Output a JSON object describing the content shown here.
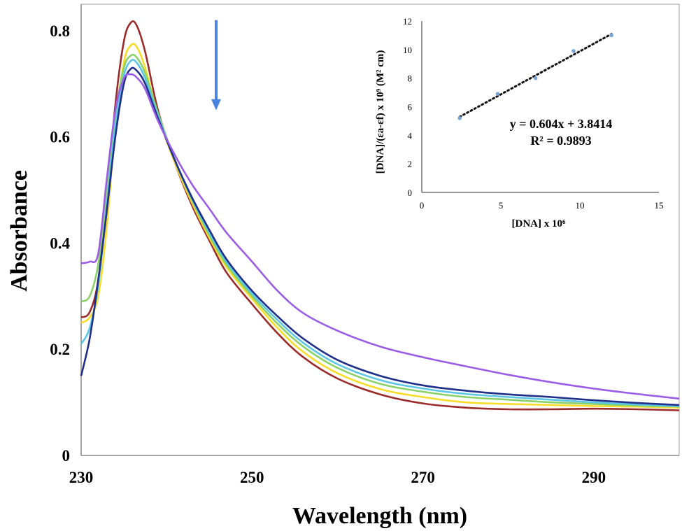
{
  "chart_data": [
    {
      "type": "line",
      "xlabel": "Wavelength (nm)",
      "ylabel": "Absorbance",
      "xlim": [
        230,
        300
      ],
      "ylim": [
        0,
        0.85
      ],
      "x_ticks": [
        "230",
        "250",
        "270",
        "290"
      ],
      "y_ticks": [
        "0",
        "0.2",
        "0.4",
        "0.6",
        "0.8"
      ],
      "annotation": "downward arrow indicating decreasing absorbance",
      "arrow": {
        "x": 245.8,
        "y_from": 0.82,
        "y_to": 0.65,
        "color": "#4a86e0"
      },
      "series": [
        {
          "color": "#9b2a2a",
          "points": [
            [
              230,
              0.26
            ],
            [
              231,
              0.27
            ],
            [
              232,
              0.33
            ],
            [
              233,
              0.48
            ],
            [
              234,
              0.66
            ],
            [
              235,
              0.78
            ],
            [
              235.8,
              0.815
            ],
            [
              236.5,
              0.81
            ],
            [
              237.5,
              0.76
            ],
            [
              239,
              0.65
            ],
            [
              241,
              0.55
            ],
            [
              243,
              0.47
            ],
            [
              245,
              0.405
            ],
            [
              247,
              0.345
            ],
            [
              250,
              0.285
            ],
            [
              253,
              0.23
            ],
            [
              256,
              0.185
            ],
            [
              260,
              0.145
            ],
            [
              265,
              0.115
            ],
            [
              270,
              0.098
            ],
            [
              275,
              0.09
            ],
            [
              280,
              0.087
            ],
            [
              285,
              0.087
            ],
            [
              290,
              0.088
            ],
            [
              295,
              0.087
            ],
            [
              300,
              0.085
            ]
          ]
        },
        {
          "color": "#f7dc2a",
          "points": [
            [
              230,
              0.25
            ],
            [
              231,
              0.26
            ],
            [
              232,
              0.3
            ],
            [
              233,
              0.43
            ],
            [
              234,
              0.62
            ],
            [
              235,
              0.74
            ],
            [
              235.8,
              0.772
            ],
            [
              236.5,
              0.77
            ],
            [
              237.5,
              0.73
            ],
            [
              239,
              0.64
            ],
            [
              241,
              0.55
            ],
            [
              243,
              0.475
            ],
            [
              245,
              0.41
            ],
            [
              247,
              0.355
            ],
            [
              250,
              0.295
            ],
            [
              253,
              0.24
            ],
            [
              256,
              0.195
            ],
            [
              260,
              0.155
            ],
            [
              265,
              0.125
            ],
            [
              270,
              0.11
            ],
            [
              275,
              0.1
            ],
            [
              280,
              0.097
            ],
            [
              285,
              0.095
            ],
            [
              290,
              0.093
            ],
            [
              295,
              0.092
            ],
            [
              300,
              0.09
            ]
          ]
        },
        {
          "color": "#8ad16a",
          "points": [
            [
              230,
              0.29
            ],
            [
              231,
              0.3
            ],
            [
              232,
              0.36
            ],
            [
              233,
              0.49
            ],
            [
              234,
              0.64
            ],
            [
              235,
              0.73
            ],
            [
              235.8,
              0.753
            ],
            [
              236.5,
              0.75
            ],
            [
              237.5,
              0.72
            ],
            [
              239,
              0.645
            ],
            [
              241,
              0.555
            ],
            [
              243,
              0.48
            ],
            [
              245,
              0.415
            ],
            [
              247,
              0.36
            ],
            [
              250,
              0.3
            ],
            [
              253,
              0.248
            ],
            [
              256,
              0.205
            ],
            [
              260,
              0.165
            ],
            [
              265,
              0.135
            ],
            [
              270,
              0.12
            ],
            [
              275,
              0.11
            ],
            [
              280,
              0.105
            ],
            [
              285,
              0.1
            ],
            [
              290,
              0.097
            ],
            [
              295,
              0.094
            ],
            [
              300,
              0.092
            ]
          ]
        },
        {
          "color": "#5cc6e6",
          "points": [
            [
              230,
              0.21
            ],
            [
              231,
              0.24
            ],
            [
              232,
              0.32
            ],
            [
              233,
              0.47
            ],
            [
              234,
              0.62
            ],
            [
              235,
              0.715
            ],
            [
              235.8,
              0.743
            ],
            [
              236.5,
              0.74
            ],
            [
              237.5,
              0.71
            ],
            [
              239,
              0.64
            ],
            [
              241,
              0.555
            ],
            [
              243,
              0.483
            ],
            [
              245,
              0.42
            ],
            [
              247,
              0.365
            ],
            [
              250,
              0.305
            ],
            [
              253,
              0.255
            ],
            [
              256,
              0.212
            ],
            [
              260,
              0.172
            ],
            [
              265,
              0.142
            ],
            [
              270,
              0.126
            ],
            [
              275,
              0.116
            ],
            [
              280,
              0.11
            ],
            [
              285,
              0.105
            ],
            [
              290,
              0.1
            ],
            [
              295,
              0.096
            ],
            [
              300,
              0.093
            ]
          ]
        },
        {
          "color": "#1f2f8a",
          "points": [
            [
              230,
              0.15
            ],
            [
              231,
              0.22
            ],
            [
              232,
              0.33
            ],
            [
              233,
              0.46
            ],
            [
              234,
              0.6
            ],
            [
              235,
              0.7
            ],
            [
              235.8,
              0.728
            ],
            [
              236.5,
              0.725
            ],
            [
              237.5,
              0.7
            ],
            [
              239,
              0.635
            ],
            [
              241,
              0.555
            ],
            [
              243,
              0.485
            ],
            [
              245,
              0.425
            ],
            [
              247,
              0.37
            ],
            [
              250,
              0.31
            ],
            [
              253,
              0.262
            ],
            [
              256,
              0.22
            ],
            [
              260,
              0.18
            ],
            [
              265,
              0.15
            ],
            [
              270,
              0.132
            ],
            [
              275,
              0.122
            ],
            [
              280,
              0.115
            ],
            [
              285,
              0.11
            ],
            [
              290,
              0.104
            ],
            [
              295,
              0.099
            ],
            [
              300,
              0.095
            ]
          ]
        },
        {
          "color": "#9b5de5",
          "points": [
            [
              230,
              0.362
            ],
            [
              231,
              0.365
            ],
            [
              232,
              0.38
            ],
            [
              233,
              0.52
            ],
            [
              234,
              0.65
            ],
            [
              235,
              0.71
            ],
            [
              235.8,
              0.718
            ],
            [
              236.5,
              0.712
            ],
            [
              237.5,
              0.69
            ],
            [
              239,
              0.63
            ],
            [
              241,
              0.565
            ],
            [
              243,
              0.51
            ],
            [
              245,
              0.465
            ],
            [
              247,
              0.42
            ],
            [
              250,
              0.365
            ],
            [
              253,
              0.31
            ],
            [
              256,
              0.268
            ],
            [
              260,
              0.235
            ],
            [
              265,
              0.205
            ],
            [
              270,
              0.185
            ],
            [
              275,
              0.168
            ],
            [
              280,
              0.152
            ],
            [
              285,
              0.138
            ],
            [
              290,
              0.126
            ],
            [
              295,
              0.116
            ],
            [
              300,
              0.107
            ]
          ]
        }
      ]
    },
    {
      "type": "scatter",
      "xlabel": "[DNA] x 10⁶",
      "ylabel": "[DNA]/(εa-εf) x 10⁹ (M² cm)",
      "xlim": [
        0,
        15
      ],
      "ylim": [
        0,
        12
      ],
      "x_ticks": [
        "0",
        "5",
        "10",
        "15"
      ],
      "y_ticks": [
        "0",
        "2",
        "4",
        "6",
        "8",
        "10",
        "12"
      ],
      "points": [
        [
          2.4,
          5.2
        ],
        [
          4.8,
          6.9
        ],
        [
          7.2,
          8.0
        ],
        [
          9.6,
          9.9
        ],
        [
          12.0,
          11.0
        ]
      ],
      "point_color": "#7aa6d8",
      "trendline": {
        "slope": 0.604,
        "intercept": 3.8414,
        "x_from": 2.4,
        "x_to": 12.0,
        "style": "dotted"
      },
      "equation": "y = 0.604x + 3.8414",
      "r2": "R² = 0.9893"
    }
  ]
}
